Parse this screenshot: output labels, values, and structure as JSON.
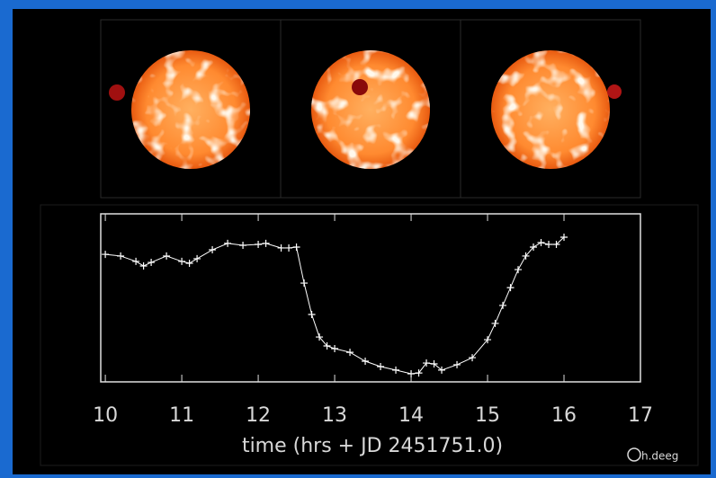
{
  "chart_data": {
    "type": "line",
    "xlabel": "time (hrs + JD 2451751.0)",
    "credit": "h.deeg",
    "x": [
      10.0,
      10.2,
      10.4,
      10.5,
      10.6,
      10.8,
      11.0,
      11.1,
      11.2,
      11.4,
      11.6,
      11.8,
      12.0,
      12.1,
      12.3,
      12.4,
      12.5,
      12.6,
      12.7,
      12.8,
      12.9,
      13.0,
      13.2,
      13.4,
      13.6,
      13.8,
      14.0,
      14.1,
      14.2,
      14.3,
      14.4,
      14.6,
      14.8,
      15.0,
      15.1,
      15.2,
      15.3,
      15.4,
      15.5,
      15.6,
      15.7,
      15.8,
      15.9,
      16.0
    ],
    "values": [
      75.9,
      74.9,
      71.7,
      69.0,
      71.1,
      74.9,
      71.7,
      70.6,
      73.3,
      78.6,
      82.4,
      81.3,
      81.8,
      82.4,
      79.7,
      79.7,
      80.2,
      58.8,
      40.1,
      26.7,
      21.4,
      19.8,
      17.6,
      12.3,
      9.1,
      7.0,
      4.8,
      5.3,
      11.2,
      10.7,
      7.0,
      10.2,
      14.4,
      25.1,
      34.8,
      45.5,
      56.1,
      66.8,
      74.9,
      80.2,
      82.9,
      81.8,
      81.8,
      86.1
    ],
    "color": "#ffffff",
    "xlim": [
      9.94,
      17.0
    ],
    "xticks": [
      10,
      11,
      12,
      13,
      14,
      15,
      16,
      17
    ],
    "ylim": [
      0,
      100
    ]
  }
}
